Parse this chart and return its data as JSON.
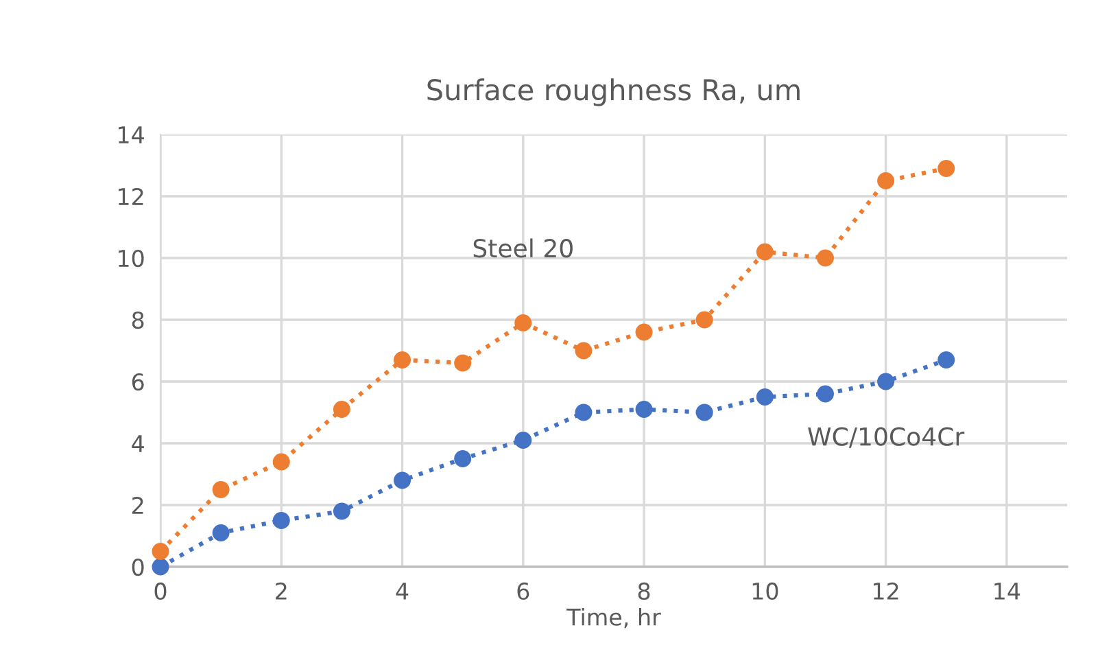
{
  "chart_data": {
    "type": "line",
    "title": "Surface roughness Ra, um",
    "xlabel": "Time, hr",
    "x": [
      0,
      1,
      2,
      3,
      4,
      5,
      6,
      7,
      8,
      9,
      10,
      11,
      12,
      13
    ],
    "series": [
      {
        "name": "WC/10Co4Cr",
        "color": "#4472c4",
        "values": [
          0,
          1.1,
          1.5,
          1.8,
          2.8,
          3.5,
          4.1,
          5.0,
          5.1,
          5.0,
          5.5,
          5.6,
          6.0,
          6.7
        ]
      },
      {
        "name": "Steel 20",
        "color": "#ed7d31",
        "values": [
          0.5,
          2.5,
          3.4,
          5.1,
          6.7,
          6.6,
          7.9,
          7.0,
          7.6,
          8.0,
          10.2,
          10.0,
          12.5,
          12.9
        ]
      }
    ],
    "xlim": [
      0,
      15
    ],
    "xticks": [
      0,
      2,
      4,
      6,
      8,
      10,
      12,
      14
    ],
    "ylim": [
      0,
      14
    ],
    "yticks": [
      0,
      2,
      4,
      6,
      8,
      10,
      12,
      14
    ],
    "grid": true,
    "marker": "circle",
    "line_style": "dotted",
    "legend": false
  }
}
